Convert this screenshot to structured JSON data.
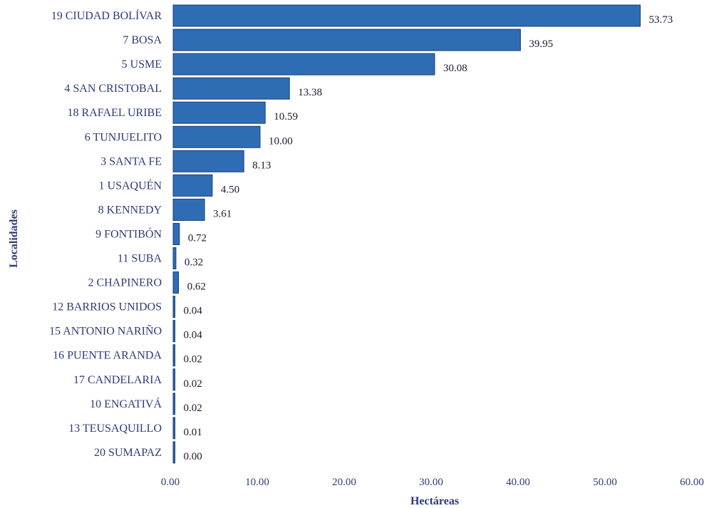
{
  "chart_data": {
    "type": "bar",
    "orientation": "horizontal",
    "categories": [
      "19 CIUDAD BOLÍVAR",
      "7 BOSA",
      "5 USME",
      "4 SAN CRISTOBAL",
      "18 RAFAEL URIBE",
      "6 TUNJUELITO",
      "3 SANTA FE",
      "1 USAQUÉN",
      "8 KENNEDY",
      "9 FONTIBÓN",
      "11 SUBA",
      "2 CHAPINERO",
      "12 BARRIOS UNIDOS",
      "15 ANTONIO NARIÑO",
      "16 PUENTE ARANDA",
      "17 CANDELARIA",
      "10 ENGATIVÁ",
      "13 TEUSAQUILLO",
      "20 SUMAPAZ"
    ],
    "values": [
      53.73,
      39.95,
      30.08,
      13.38,
      10.59,
      10.0,
      8.13,
      4.5,
      3.61,
      0.72,
      0.32,
      0.62,
      0.04,
      0.04,
      0.02,
      0.02,
      0.02,
      0.01,
      0.0
    ],
    "value_labels": [
      "53.73",
      "39.95",
      "30.08",
      "13.38",
      "10.59",
      "10.00",
      "8.13",
      "4.50",
      "3.61",
      "0.72",
      "0.32",
      "0.62",
      "0.04",
      "0.04",
      "0.02",
      "0.02",
      "0.02",
      "0.01",
      "0.00"
    ],
    "xlim": [
      0,
      60
    ],
    "xticks": [
      0,
      10,
      20,
      30,
      40,
      50,
      60
    ],
    "xtick_labels": [
      "0.00",
      "10.00",
      "20.00",
      "30.00",
      "40.00",
      "50.00",
      "60.00"
    ],
    "xlabel": "Hectáreas",
    "ylabel": "Localidades",
    "grid": false,
    "bar_color": "#2e6db4",
    "bar_edge_color": "#1b3f7a",
    "text_color": "#2e3a78"
  }
}
